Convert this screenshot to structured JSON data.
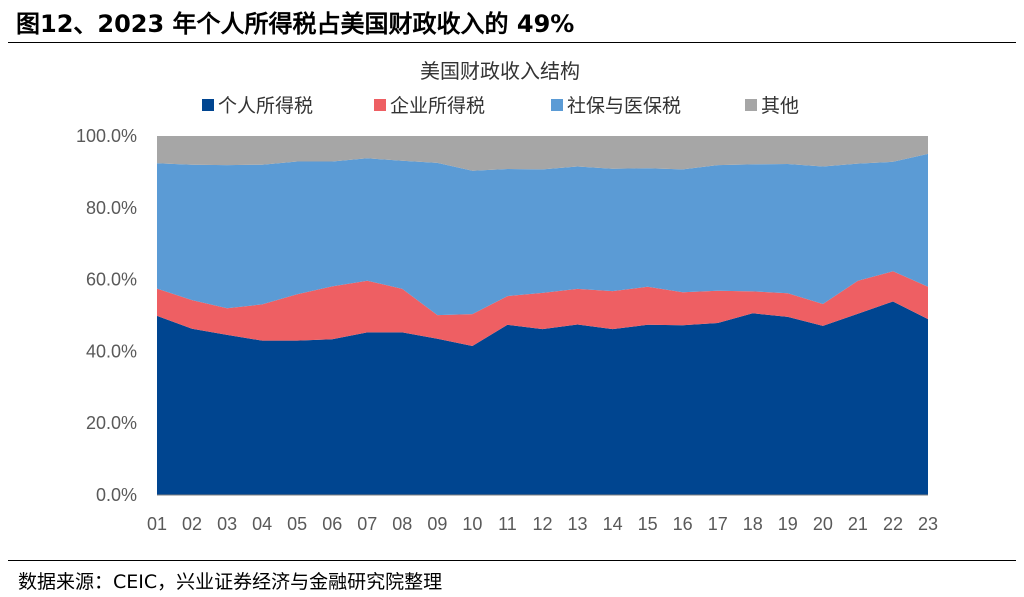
{
  "figure": {
    "title": "图12、2023 年个人所得税占美国财政收入的 49%",
    "source": "数据来源：CEIC，兴业证券经济与金融研究院整理"
  },
  "chart_data": {
    "type": "area",
    "stacked": true,
    "title": "美国财政收入结构",
    "xlabel": "",
    "ylabel": "",
    "categories": [
      "01",
      "02",
      "03",
      "04",
      "05",
      "06",
      "07",
      "08",
      "09",
      "10",
      "11",
      "12",
      "13",
      "14",
      "15",
      "16",
      "17",
      "18",
      "19",
      "20",
      "21",
      "22",
      "23"
    ],
    "yticks": [
      "0.0%",
      "20.0%",
      "40.0%",
      "60.0%",
      "80.0%",
      "100.0%"
    ],
    "ylim": [
      0,
      100
    ],
    "legend_position": "top",
    "series": [
      {
        "name": "个人所得税",
        "color": "#004590",
        "values": [
          49.9,
          46.3,
          44.6,
          43.0,
          43.0,
          43.4,
          45.3,
          45.3,
          43.5,
          41.5,
          47.4,
          46.2,
          47.5,
          46.2,
          47.4,
          47.3,
          47.9,
          50.6,
          49.6,
          47.1,
          50.5,
          53.9,
          49.0
        ]
      },
      {
        "name": "企业所得税",
        "color": "#EE5F63",
        "values": [
          7.6,
          8.0,
          7.4,
          10.1,
          12.9,
          14.7,
          14.4,
          12.1,
          6.6,
          8.9,
          8.0,
          10.1,
          9.9,
          10.6,
          10.6,
          9.2,
          9.0,
          6.1,
          6.6,
          6.1,
          9.2,
          8.4,
          9.0
        ]
      },
      {
        "name": "社保与医保税",
        "color": "#5B9BD5",
        "values": [
          34.9,
          37.7,
          39.9,
          38.9,
          37.0,
          34.8,
          34.1,
          35.7,
          42.4,
          39.9,
          35.4,
          34.4,
          34.1,
          34.1,
          33.0,
          34.2,
          35.0,
          35.4,
          36.0,
          38.3,
          32.6,
          30.5,
          37.0
        ]
      },
      {
        "name": "其他",
        "color": "#A6A6A6",
        "values": [
          7.6,
          8.0,
          8.1,
          8.0,
          7.1,
          7.1,
          6.2,
          6.9,
          7.5,
          9.7,
          9.2,
          9.3,
          8.5,
          9.1,
          9.0,
          9.3,
          8.1,
          7.9,
          7.8,
          8.5,
          7.7,
          7.2,
          5.0
        ]
      }
    ]
  }
}
